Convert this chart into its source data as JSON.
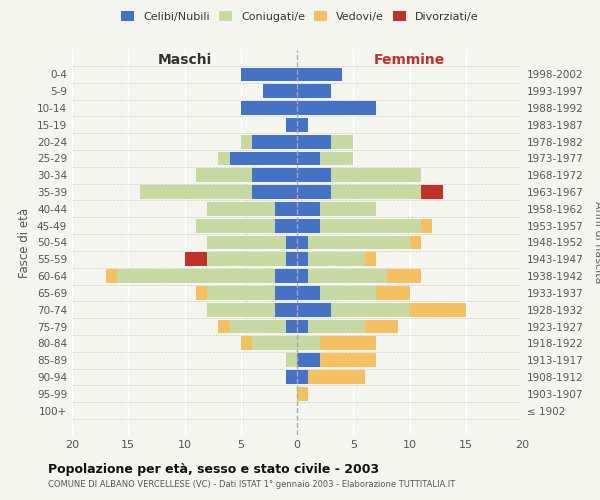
{
  "age_groups": [
    "100+",
    "95-99",
    "90-94",
    "85-89",
    "80-84",
    "75-79",
    "70-74",
    "65-69",
    "60-64",
    "55-59",
    "50-54",
    "45-49",
    "40-44",
    "35-39",
    "30-34",
    "25-29",
    "20-24",
    "15-19",
    "10-14",
    "5-9",
    "0-4"
  ],
  "birth_years": [
    "≤ 1902",
    "1903-1907",
    "1908-1912",
    "1913-1917",
    "1918-1922",
    "1923-1927",
    "1928-1932",
    "1933-1937",
    "1938-1942",
    "1943-1947",
    "1948-1952",
    "1953-1957",
    "1958-1962",
    "1963-1967",
    "1968-1972",
    "1973-1977",
    "1978-1982",
    "1983-1987",
    "1988-1992",
    "1993-1997",
    "1998-2002"
  ],
  "maschi": {
    "celibi": [
      0,
      0,
      1,
      0,
      0,
      1,
      2,
      2,
      2,
      1,
      1,
      2,
      2,
      4,
      4,
      6,
      4,
      1,
      5,
      3,
      5
    ],
    "coniugati": [
      0,
      0,
      0,
      1,
      4,
      5,
      6,
      6,
      14,
      7,
      7,
      7,
      6,
      10,
      5,
      1,
      1,
      0,
      0,
      0,
      0
    ],
    "vedovi": [
      0,
      0,
      0,
      0,
      1,
      1,
      0,
      1,
      1,
      0,
      0,
      0,
      0,
      0,
      0,
      0,
      0,
      0,
      0,
      0,
      0
    ],
    "divorziati": [
      0,
      0,
      0,
      0,
      0,
      0,
      0,
      0,
      0,
      2,
      0,
      0,
      0,
      0,
      0,
      0,
      0,
      0,
      0,
      0,
      0
    ]
  },
  "femmine": {
    "nubili": [
      0,
      0,
      1,
      2,
      0,
      1,
      3,
      2,
      1,
      1,
      1,
      2,
      2,
      3,
      3,
      2,
      3,
      1,
      7,
      3,
      4
    ],
    "coniugate": [
      0,
      0,
      0,
      0,
      2,
      5,
      7,
      5,
      7,
      5,
      9,
      9,
      5,
      8,
      8,
      3,
      2,
      0,
      0,
      0,
      0
    ],
    "vedove": [
      0,
      1,
      5,
      5,
      5,
      3,
      5,
      3,
      3,
      1,
      1,
      1,
      0,
      0,
      0,
      0,
      0,
      0,
      0,
      0,
      0
    ],
    "divorziate": [
      0,
      0,
      0,
      0,
      0,
      0,
      0,
      0,
      0,
      0,
      0,
      0,
      0,
      2,
      0,
      0,
      0,
      0,
      0,
      0,
      0
    ]
  },
  "colors": {
    "celibi_nubili": "#4472c4",
    "coniugati_e": "#c5d9a0",
    "vedovi_e": "#f5c060",
    "divorziati_e": "#c0312b"
  },
  "xlim": 20,
  "title": "Popolazione per età, sesso e stato civile - 2003",
  "subtitle": "COMUNE DI ALBANO VERCELLESE (VC) - Dati ISTAT 1° gennaio 2003 - Elaborazione TUTTITALIA.IT",
  "ylabel_left": "Fasce di età",
  "ylabel_right": "Anni di nascita",
  "xlabel_maschi": "Maschi",
  "xlabel_femmine": "Femmine",
  "bg_color": "#f5f5f0",
  "bar_height": 0.82
}
